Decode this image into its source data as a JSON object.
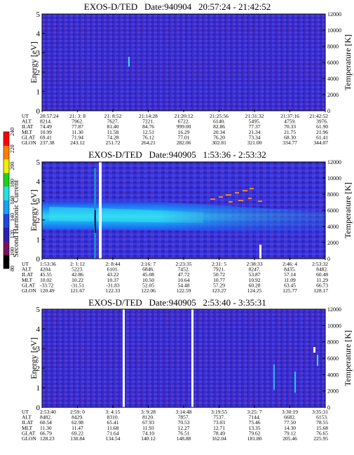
{
  "colorbar": {
    "label": "Second Harmonic Current",
    "ticks": [
      "80",
      "100",
      "120",
      "140",
      "160",
      "180",
      "200",
      "220",
      "240"
    ],
    "colors": [
      "#000000",
      "#7a1060",
      "#2a20b0",
      "#2244e0",
      "#1aa0f0",
      "#28e0e0",
      "#20d020",
      "#f0f000",
      "#ff8000",
      "#ff0000"
    ]
  },
  "chart_data": [
    {
      "type": "heatmap",
      "title": "EXOS-D/TED   Date:940904   20:57:24 - 21:42:52",
      "ylabel": "Energy [eV]",
      "y2label": "Temperature [K]",
      "ylim": [
        0,
        5
      ],
      "y2lim": [
        0,
        12000
      ],
      "yticks": [
        "0",
        "1",
        "2",
        "3",
        "4",
        "5"
      ],
      "y2ticks": [
        "0",
        "2000",
        "4000",
        "6000",
        "8000",
        "10000",
        "12000"
      ],
      "grid": false,
      "orbit_table": {
        "row_labels": [
          "UT",
          "ALT",
          "ILAT",
          "MLT",
          "GLAT",
          "GLON"
        ],
        "columns": [
          [
            "20:57:24",
            "8214.",
            "74.49",
            "10.99",
            "69.41",
            "237.38"
          ],
          [
            "21: 3: 8",
            "7962.",
            "77.87",
            "11.30",
            "71.94",
            "243.12"
          ],
          [
            "21: 8:52",
            "7627.",
            "81.40",
            "11.58",
            "74.28",
            "251.72"
          ],
          [
            "21:14:28",
            "7221.",
            "84.76",
            "12.51",
            "76.12",
            "264.21"
          ],
          [
            "21:20:12",
            "6722.",
            "999.00",
            "16.29",
            "77.01",
            "282.06"
          ],
          [
            "21:25:56",
            "6140.",
            "82.86",
            "20.34",
            "76.20",
            "302.81"
          ],
          [
            "21:31:32",
            "5495.",
            "77.37",
            "21.34",
            "73.34",
            "321.00"
          ],
          [
            "21:37:16",
            "4759.",
            "70.33",
            "21.75",
            "68.30",
            "334.77"
          ],
          [
            "21:42:52",
            "3976.",
            "61.90",
            "21.96",
            "61.41",
            "344.07"
          ]
        ]
      }
    },
    {
      "type": "heatmap",
      "title": "EXOS-D/TED   Date:940905   1:53:36 - 2:53:32",
      "ylabel": "Energy [eV]",
      "y2label": "Temperature [K]",
      "ylim": [
        0,
        5
      ],
      "y2lim": [
        0,
        12000
      ],
      "yticks": [
        "0",
        "1",
        "2",
        "3",
        "4",
        "5"
      ],
      "y2ticks": [
        "0",
        "2000",
        "4000",
        "6000",
        "8000",
        "10000",
        "12000"
      ],
      "grid": false,
      "orbit_table": {
        "row_labels": [
          "UT",
          "ALT",
          "ILAT",
          "MLT",
          "GLAT",
          "GLON"
        ],
        "columns": [
          [
            "1:53:36",
            "4204.",
            "45.55",
            "10.02",
            "-33.72",
            "120.49"
          ],
          [
            "2: 1:12",
            "5223.",
            "42.86",
            "10.22",
            "-31.51",
            "121.67"
          ],
          [
            "2: 8:44",
            "6101.",
            "43.22",
            "10.37",
            "-31.83",
            "122.33"
          ],
          [
            "2:16: 7",
            "6846.",
            "45.08",
            "10.50",
            "52.05",
            "122.06"
          ],
          [
            "2:23:35",
            "7452.",
            "47.72",
            "10.64",
            "54.48",
            "122.59"
          ],
          [
            "2:31: 5",
            "7921.",
            "50.72",
            "10.77",
            "57.29",
            "123.27"
          ],
          [
            "2:38:33",
            "8247.",
            "53.87",
            "10.92",
            "60.28",
            "124.25"
          ],
          [
            "2:46: 4",
            "8435.",
            "57.14",
            "11.09",
            "63.45",
            "125.77"
          ],
          [
            "2:53:32",
            "8482.",
            "60.48",
            "11.29",
            "66.73",
            "128.17"
          ]
        ]
      }
    },
    {
      "type": "heatmap",
      "title": "EXOS-D/TED   Date:940905   2:53:40 - 3:35:31",
      "ylabel": "Energy [eV]",
      "y2label": "Temperature [K]",
      "ylim": [
        0,
        5
      ],
      "y2lim": [
        0,
        12000
      ],
      "yticks": [
        "0",
        "1",
        "2",
        "3",
        "4",
        "5"
      ],
      "y2ticks": [
        "0",
        "2000",
        "4000",
        "6000",
        "8000",
        "10000",
        "12000"
      ],
      "grid": false,
      "orbit_table": {
        "row_labels": [
          "UT",
          "ALT",
          "ILAT",
          "MLT",
          "GLAT",
          "GLON"
        ],
        "columns": [
          [
            "2:53:40",
            "8482.",
            "60.54",
            "11.30",
            "66.79",
            "128.23"
          ],
          [
            "2:59: 0",
            "8429.",
            "62.98",
            "11.47",
            "69.22",
            "130.84"
          ],
          [
            "3: 4:15",
            "8310.",
            "65.41",
            "11.68",
            "71.64",
            "134.54"
          ],
          [
            "3: 9:28",
            "8120.",
            "67.93",
            "11.93",
            "74.10",
            "140.12"
          ],
          [
            "3:14:48",
            "7857.",
            "70.53",
            "12.27",
            "76.51",
            "148.88"
          ],
          [
            "3:19:55",
            "7537.",
            "73.03",
            "12.71",
            "78.49",
            "162.04"
          ],
          [
            "3:25: 7",
            "7144.",
            "75.46",
            "13.35",
            "79.62",
            "181.80"
          ],
          [
            "3:30:19",
            "6682.",
            "77.50",
            "14.30",
            "79.12",
            "205.46"
          ],
          [
            "3:35:31",
            "6153.",
            "78.55",
            "15.68",
            "76.65",
            "225.95"
          ]
        ]
      }
    }
  ]
}
